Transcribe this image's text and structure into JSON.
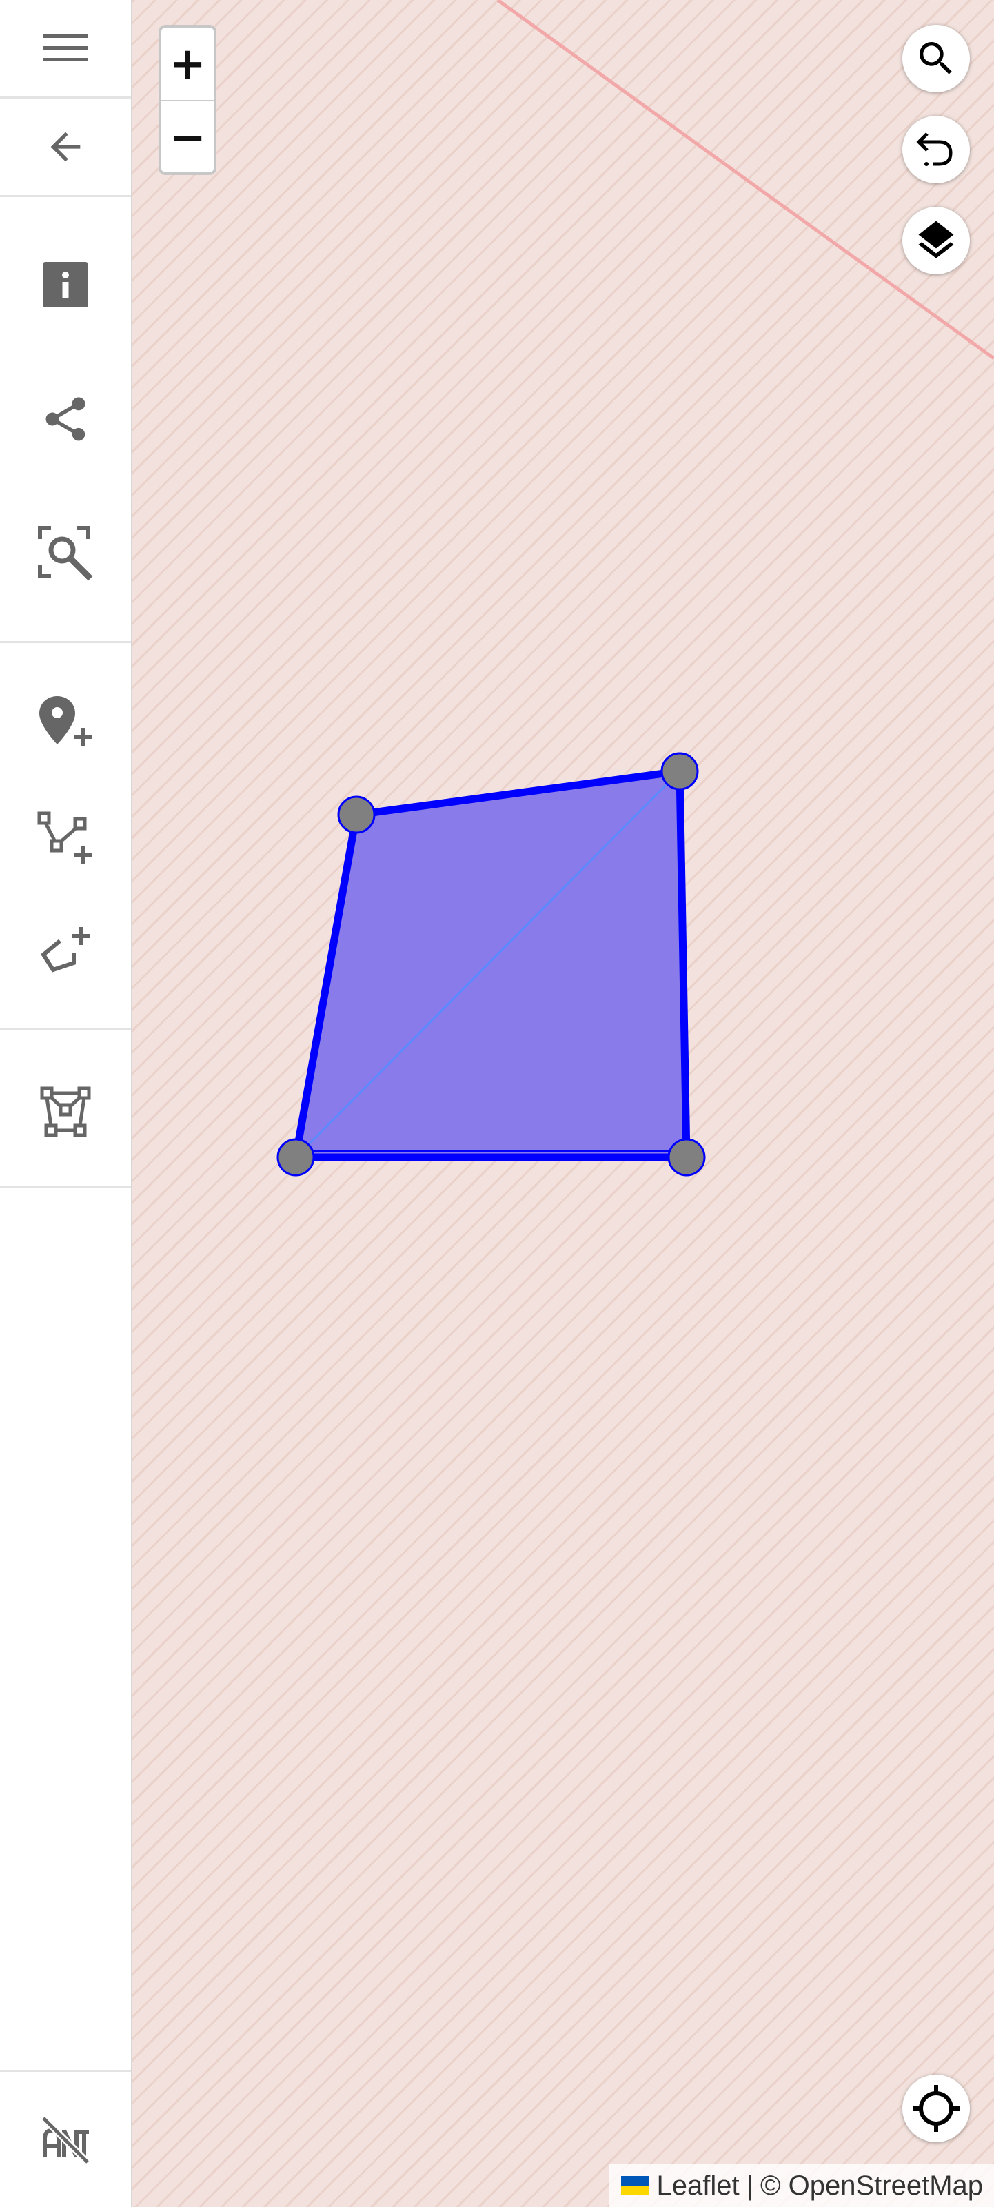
{
  "sidebar": {
    "items": [
      {
        "name": "menu",
        "icon": "menu-icon"
      },
      {
        "name": "back",
        "icon": "arrow-left-icon"
      },
      {
        "name": "info",
        "icon": "info-icon"
      },
      {
        "name": "share",
        "icon": "share-icon"
      },
      {
        "name": "zoom-to-data",
        "icon": "zoom-extent-icon"
      },
      {
        "name": "add-marker",
        "icon": "add-marker-icon"
      },
      {
        "name": "draw-line",
        "icon": "add-line-icon"
      },
      {
        "name": "draw-polygon",
        "icon": "add-polygon-icon"
      },
      {
        "name": "edit-vertices",
        "icon": "edit-nodes-icon"
      },
      {
        "name": "toggle-labels",
        "icon": "labels-off-icon"
      }
    ]
  },
  "map": {
    "zoom_in_label": "+",
    "zoom_out_label": "−",
    "controls": {
      "search": "search-icon",
      "undo": "undo-icon",
      "layers": "layers-icon",
      "locate": "locate-icon"
    },
    "polygon": {
      "stroke_color": "#0000ff",
      "fill_color": "#8a7bea",
      "vertex_fill": "#808080",
      "vertex_count": 4
    },
    "background_color": "#f2e1dc"
  },
  "attribution": {
    "leaflet_label": "Leaflet",
    "separator": "|",
    "osm_label": "© OpenStreetMap"
  },
  "colors": {
    "icon_gray": "#666666",
    "flag_blue": "#0057b7",
    "flag_yellow": "#ffd700"
  }
}
